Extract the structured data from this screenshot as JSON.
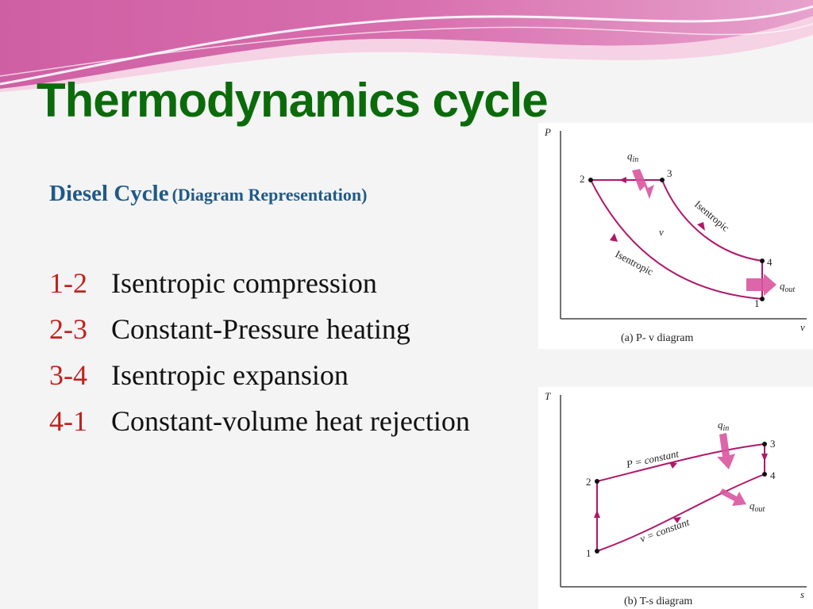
{
  "title": "Thermodynamics cycle",
  "subtitle": {
    "main": "Diesel Cycle",
    "detail": "(Diagram Representation)"
  },
  "steps": [
    {
      "num": "1-2",
      "text": "Isentropic compression"
    },
    {
      "num": "2-3",
      "text": "Constant-Pressure heating"
    },
    {
      "num": "3-4",
      "text": "Isentropic expansion"
    },
    {
      "num": "4-1",
      "text": "Constant-volume heat rejection"
    }
  ],
  "pv": {
    "caption": "(a) P- v diagram",
    "ylabel": "P",
    "xlabel": "v",
    "points": [
      "1",
      "2",
      "3",
      "4"
    ],
    "q_in": "q",
    "q_in_sub": "in",
    "q_out": "q",
    "q_out_sub": "out",
    "isentropic_top": "Isentropic",
    "isentropic_bottom": "Isentropic",
    "center": "v"
  },
  "ts": {
    "caption": "(b) T-s diagram",
    "ylabel": "T",
    "xlabel": "s",
    "points": [
      "1",
      "2",
      "3",
      "4"
    ],
    "p_const": "P = constant",
    "v_const": "v = constant",
    "q_in": "q",
    "q_in_sub": "in",
    "q_out": "q",
    "q_out_sub": "out"
  },
  "colors": {
    "title": "#0b6b0b",
    "subtitle": "#1f5a8a",
    "step_num": "#c0221f",
    "curve": "#b0186a",
    "arrow": "#d8559e",
    "wave": "#d66aa8"
  }
}
